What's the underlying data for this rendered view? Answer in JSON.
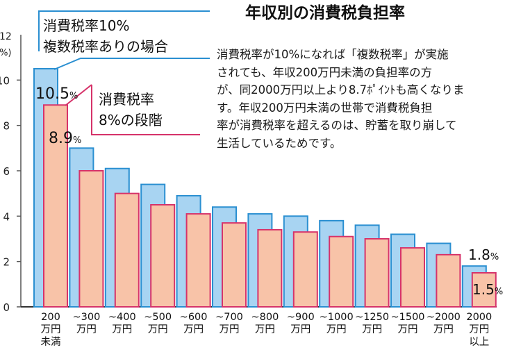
{
  "chart_data": {
    "type": "bar",
    "title": "年収別の消費税負担率",
    "ylabel_top": "12",
    "ylabel_unit": "(%)",
    "ylim": [
      0,
      12
    ],
    "yticks": [
      0,
      2,
      4,
      6,
      8,
      10
    ],
    "categories": [
      [
        "200",
        "万円",
        "未満"
      ],
      [
        "~300",
        "万円"
      ],
      [
        "~400",
        "万円"
      ],
      [
        "~500",
        "万円"
      ],
      [
        "~600",
        "万円"
      ],
      [
        "~700",
        "万円"
      ],
      [
        "~800",
        "万円"
      ],
      [
        "~900",
        "万円"
      ],
      [
        "~1000",
        "万円"
      ],
      [
        "~1250",
        "万円"
      ],
      [
        "~1500",
        "万円"
      ],
      [
        "~2000",
        "万円"
      ],
      [
        "2000",
        "万円",
        "以上"
      ]
    ],
    "series": [
      {
        "name": "消費税率10% 複数税率ありの場合",
        "color": "#a8d4f2",
        "stroke": "#2a8fd1",
        "values": [
          10.5,
          7.0,
          6.1,
          5.4,
          4.9,
          4.4,
          4.1,
          4.0,
          3.8,
          3.6,
          3.2,
          2.8,
          1.8
        ]
      },
      {
        "name": "消費税率8%の段階",
        "color": "#f8c3a8",
        "stroke": "#d6336a",
        "values": [
          8.9,
          6.0,
          5.0,
          4.5,
          4.1,
          3.7,
          3.4,
          3.3,
          3.1,
          3.0,
          2.6,
          2.3,
          1.5
        ]
      }
    ],
    "annotations": {
      "callout10_line1": "消費税率10%",
      "callout10_line2": "複数税率ありの場合",
      "callout8_line1": "消費税率",
      "callout8_line2": "8%の段階",
      "first10_num": "10.5",
      "first8_num": "8.9",
      "last10_num": "1.8",
      "last8_num": "1.5",
      "pct": "%"
    },
    "description": [
      "消費税率が10%になれば「複数税率」が実施",
      "されても、年収200万円未満の負担率の方",
      "が、同2000万円以上より8.7ﾎﾟｲﾝﾄも高くなりま",
      "す。年収200万円未満の世帯で消費税負担",
      "率が消費税率を超えるのは、貯蓄を取り崩して",
      "生活しているためです。"
    ]
  }
}
